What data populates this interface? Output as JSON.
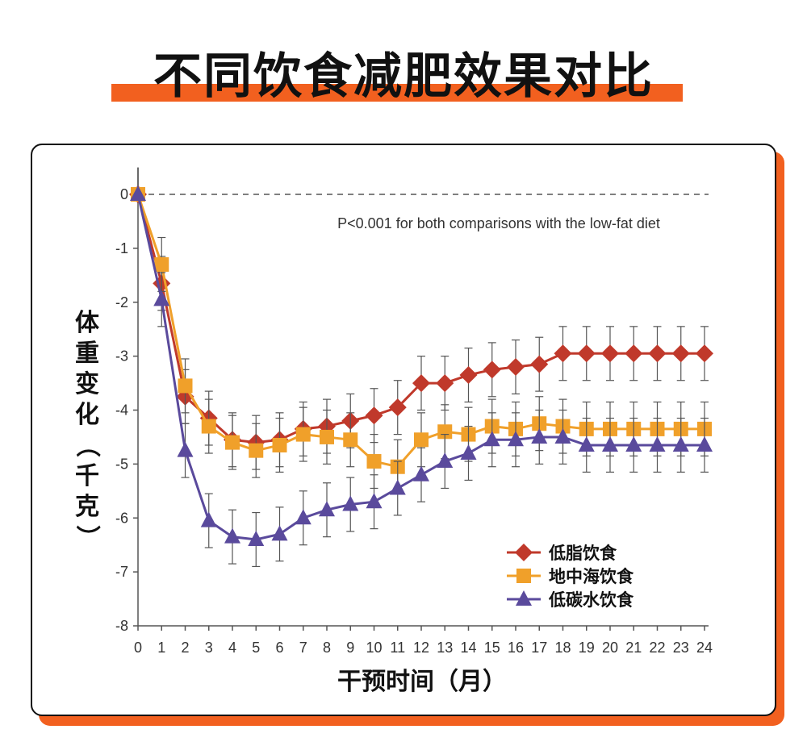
{
  "header": {
    "title": "不同饮食减肥效果对比"
  },
  "colors": {
    "accent": "#f2601f",
    "lowfat": "#c0392b",
    "mediterranean": "#f0a02a",
    "lowcarb": "#5a4a9c"
  },
  "chart_data": {
    "type": "line",
    "title": "",
    "xlabel": "干预时间（月）",
    "ylabel": "体重变化（千克）",
    "annotation": "P<0.001 for both comparisons with the low-fat diet",
    "xlim": [
      0,
      24
    ],
    "ylim": [
      -8,
      0
    ],
    "x": [
      0,
      1,
      2,
      3,
      4,
      5,
      6,
      7,
      8,
      9,
      10,
      11,
      12,
      13,
      14,
      15,
      16,
      17,
      18,
      19,
      20,
      21,
      22,
      23,
      24
    ],
    "x_ticks": [
      "0",
      "1",
      "2",
      "3",
      "4",
      "5",
      "6",
      "7",
      "8",
      "9",
      "10",
      "11",
      "12",
      "13",
      "14",
      "15",
      "16",
      "17",
      "18",
      "19",
      "20",
      "21",
      "22",
      "23",
      "24"
    ],
    "y_ticks": [
      "0",
      "-1",
      "-2",
      "-3",
      "-4",
      "-5",
      "-6",
      "-7",
      "-8"
    ],
    "y_tick_values": [
      0,
      -1,
      -2,
      -3,
      -4,
      -5,
      -6,
      -7,
      -8
    ],
    "legend_position": "bottom-right",
    "error_bar_halfwidth": 0.5,
    "series": [
      {
        "name": "低脂饮食",
        "marker": "diamond",
        "color": "#c0392b",
        "values": [
          0,
          -1.65,
          -3.75,
          -4.15,
          -4.55,
          -4.6,
          -4.55,
          -4.35,
          -4.3,
          -4.2,
          -4.1,
          -3.95,
          -3.5,
          -3.5,
          -3.35,
          -3.25,
          -3.2,
          -3.15,
          -2.95,
          -2.95,
          -2.95,
          -2.95,
          -2.95,
          -2.95,
          -2.95
        ]
      },
      {
        "name": "地中海饮食",
        "marker": "square",
        "color": "#f0a02a",
        "values": [
          0,
          -1.3,
          -3.55,
          -4.3,
          -4.6,
          -4.75,
          -4.65,
          -4.45,
          -4.5,
          -4.55,
          -4.95,
          -5.05,
          -4.55,
          -4.4,
          -4.45,
          -4.3,
          -4.35,
          -4.25,
          -4.3,
          -4.35,
          -4.35,
          -4.35,
          -4.35,
          -4.35,
          -4.35
        ]
      },
      {
        "name": "低碳水饮食",
        "marker": "triangle",
        "color": "#5a4a9c",
        "values": [
          0,
          -1.95,
          -4.75,
          -6.05,
          -6.35,
          -6.4,
          -6.3,
          -6.0,
          -5.85,
          -5.75,
          -5.7,
          -5.45,
          -5.2,
          -4.95,
          -4.8,
          -4.55,
          -4.55,
          -4.5,
          -4.5,
          -4.65,
          -4.65,
          -4.65,
          -4.65,
          -4.65,
          -4.65
        ]
      }
    ]
  }
}
